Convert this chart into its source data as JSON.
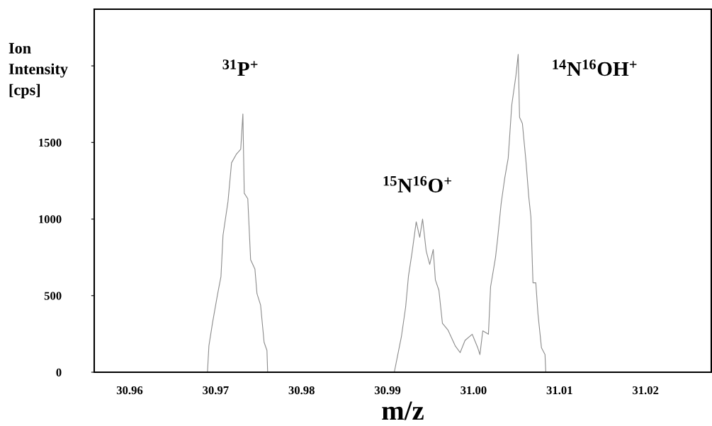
{
  "chart_data": {
    "type": "line",
    "xlabel": "m/z",
    "ylabel": "Ion\nIntensity\n[cps]",
    "xlim": [
      30.95588,
      31.02765
    ],
    "xticks": [
      {
        "value": 30.96,
        "label": "30.96"
      },
      {
        "value": 30.97,
        "label": "30.97"
      },
      {
        "value": 30.98,
        "label": "30.98"
      },
      {
        "value": 30.99,
        "label": "30.99"
      },
      {
        "value": 31.0,
        "label": "31.00"
      },
      {
        "value": 31.01,
        "label": "31.01"
      },
      {
        "value": 31.02,
        "label": "31.02"
      }
    ],
    "ylim": [
      0,
      2370
    ],
    "yticks": [
      0,
      500,
      1000,
      1500,
      {
        "value": 2000,
        "label": null
      }
    ],
    "grid": false,
    "marker": "none",
    "line_style": "solid",
    "series": [
      {
        "color": "#8c8c8c",
        "x": [
          30.96905,
          30.96922,
          30.96963,
          30.97021,
          30.97062,
          30.97086,
          30.97144,
          30.97185,
          30.97243,
          30.97292,
          30.97317,
          30.97333,
          30.97374,
          30.97407,
          30.97457,
          30.97481,
          30.97523,
          30.97564,
          30.97597,
          30.97605,
          30.99078,
          30.9916,
          30.9921,
          30.99243,
          30.99284,
          30.99333,
          30.99374,
          30.99407,
          30.99449,
          30.9949,
          30.99531,
          30.99556,
          30.99597,
          30.99638,
          30.99704,
          30.99786,
          30.99844,
          30.99901,
          30.99984,
          31.00049,
          31.00074,
          31.00107,
          31.00173,
          31.00198,
          31.00255,
          31.0028,
          31.00321,
          31.00362,
          31.00403,
          31.00444,
          31.00494,
          31.00519,
          31.00535,
          31.00568,
          31.00609,
          31.00642,
          31.00667,
          31.00691,
          31.00724,
          31.00749,
          31.0079,
          31.00831,
          31.0084
        ],
        "values": [
          0,
          173,
          319,
          504,
          624,
          894,
          1115,
          1367,
          1425,
          1456,
          1686,
          1168,
          1133,
          735,
          673,
          513,
          438,
          195,
          142,
          0,
          0,
          230,
          425,
          628,
          779,
          982,
          881,
          1000,
          792,
          704,
          801,
          602,
          535,
          319,
          274,
          173,
          128,
          208,
          248,
          159,
          115,
          270,
          248,
          558,
          748,
          872,
          1102,
          1265,
          1398,
          1743,
          1942,
          2075,
          1664,
          1624,
          1381,
          1146,
          1013,
          584,
          584,
          381,
          159,
          115,
          0
        ]
      }
    ],
    "annotations": [
      "$^{31}$P$^{+}$",
      "$^{15}$N$^{16}$O$^{+}$",
      "$^{14}$N$^{16}$OH$^{+}$"
    ]
  }
}
